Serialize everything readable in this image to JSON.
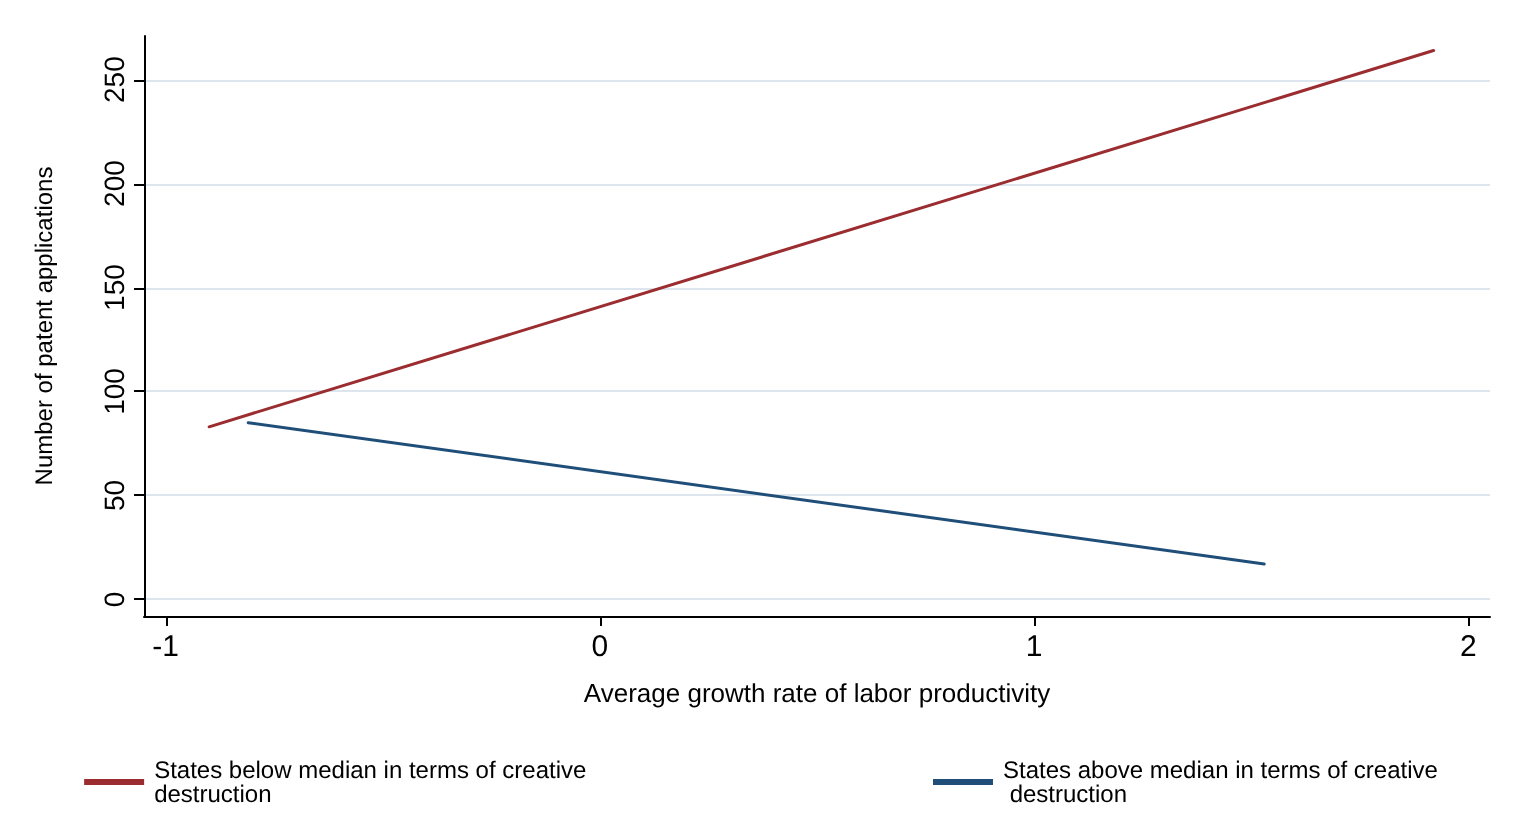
{
  "chart_data": {
    "type": "line",
    "xlabel": "Average growth rate of labor productivity",
    "ylabel": "Number of patent applications",
    "xlim": [
      -1.05,
      2.05
    ],
    "xticks": [
      -1,
      0,
      1,
      2
    ],
    "ylim": [
      -8,
      271
    ],
    "yticks": [
      0,
      50,
      100,
      150,
      200,
      250
    ],
    "grid": "y",
    "legend": "bottom",
    "marker": "none",
    "line_style": "solid",
    "series": [
      {
        "name": "States below median in terms of creative destruction",
        "color": "#9b2d30",
        "x": [
          -0.9,
          1.92
        ],
        "values": [
          83,
          264
        ]
      },
      {
        "name": "States above median in terms of creative destruction",
        "color": "#1f4e79",
        "x": [
          -0.81,
          1.53
        ],
        "values": [
          85,
          17
        ]
      }
    ]
  }
}
